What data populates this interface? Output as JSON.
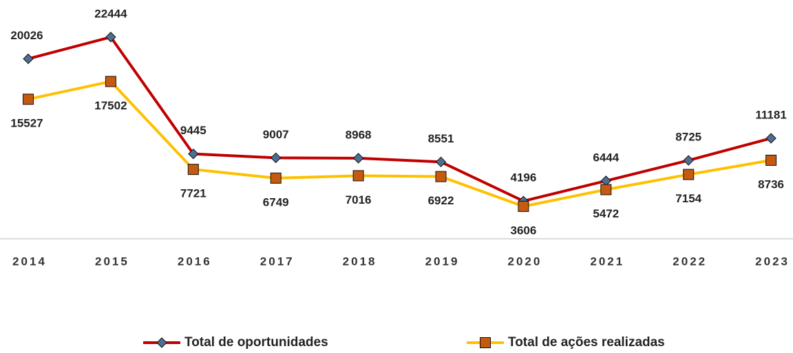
{
  "chart_data": {
    "type": "line",
    "categories": [
      "2014",
      "2015",
      "2016",
      "2017",
      "2018",
      "2019",
      "2020",
      "2021",
      "2022",
      "2023"
    ],
    "series": [
      {
        "name": "Total de oportunidades",
        "color": "#c00000",
        "marker_color": "#4f6e8f",
        "values": [
          20026,
          22444,
          9445,
          9007,
          8968,
          8551,
          4196,
          6444,
          8725,
          11181
        ]
      },
      {
        "name": "Total de ações realizadas",
        "color": "#ffc000",
        "marker_color": "#c55a11",
        "values": [
          15527,
          17502,
          7721,
          6749,
          7016,
          6922,
          3606,
          5472,
          7154,
          8736
        ]
      }
    ],
    "ylim": [
      0,
      25000
    ],
    "legend": "bottom"
  }
}
